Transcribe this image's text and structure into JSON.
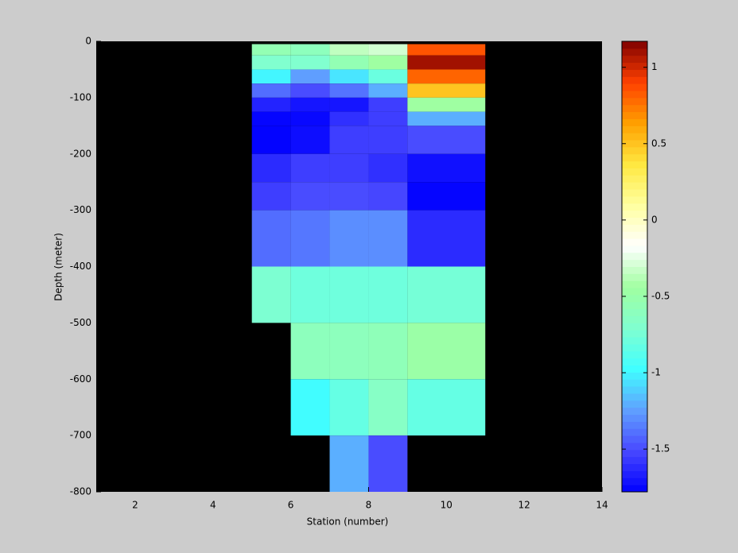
{
  "chart_data": {
    "type": "heatmap",
    "xlabel": "Station (number)",
    "ylabel": "Depth (meter)",
    "xlim": [
      1,
      14
    ],
    "xticks": [
      2,
      4,
      6,
      8,
      10,
      12,
      14
    ],
    "ylim": [
      -800,
      0
    ],
    "yticks": [
      -800,
      -700,
      -600,
      -500,
      -400,
      -300,
      -200,
      -100,
      0
    ],
    "x_edges": [
      5,
      6,
      7,
      8,
      9,
      11
    ],
    "y_edges": [
      -5,
      -25,
      -50,
      -75,
      -100,
      -125,
      -150,
      -200,
      -250,
      -300,
      -400,
      -500,
      -600,
      -700,
      -800
    ],
    "values": [
      [
        -0.55,
        -0.6,
        -0.35,
        -0.3,
        0.85
      ],
      [
        -0.7,
        -0.7,
        -0.55,
        -0.45,
        1.1
      ],
      [
        -1.0,
        -1.25,
        -1.05,
        -0.8,
        0.8
      ],
      [
        -1.4,
        -1.5,
        -1.38,
        -1.2,
        0.5
      ],
      [
        -1.65,
        -1.7,
        -1.7,
        -1.55,
        -0.45
      ],
      [
        -1.76,
        -1.75,
        -1.6,
        -1.55,
        -1.2
      ],
      [
        -1.77,
        -1.73,
        -1.55,
        -1.55,
        -1.5
      ],
      [
        -1.62,
        -1.55,
        -1.55,
        -1.6,
        -1.72
      ],
      [
        -1.55,
        -1.5,
        -1.5,
        -1.52,
        -1.76
      ],
      [
        -1.4,
        -1.37,
        -1.3,
        -1.3,
        -1.62
      ],
      [
        -0.72,
        -0.78,
        -0.78,
        -0.78,
        -0.75
      ],
      [
        null,
        -0.6,
        -0.6,
        -0.58,
        -0.48
      ],
      [
        null,
        -0.98,
        -0.82,
        -0.65,
        -0.82
      ],
      [
        null,
        null,
        -1.2,
        -1.5,
        null
      ]
    ],
    "clim": [
      -1.78,
      1.17
    ],
    "cticks": [
      -1.5,
      -1,
      -0.5,
      0,
      0.5,
      1
    ],
    "colormap": [
      "#0000ff",
      "#4848ff",
      "#60a0ff",
      "#40ffff",
      "#80ffd0",
      "#a0ffa0",
      "#ffffff",
      "#ffffa0",
      "#ffe840",
      "#ffa000",
      "#ff4000",
      "#800000"
    ],
    "background": "#000000"
  }
}
